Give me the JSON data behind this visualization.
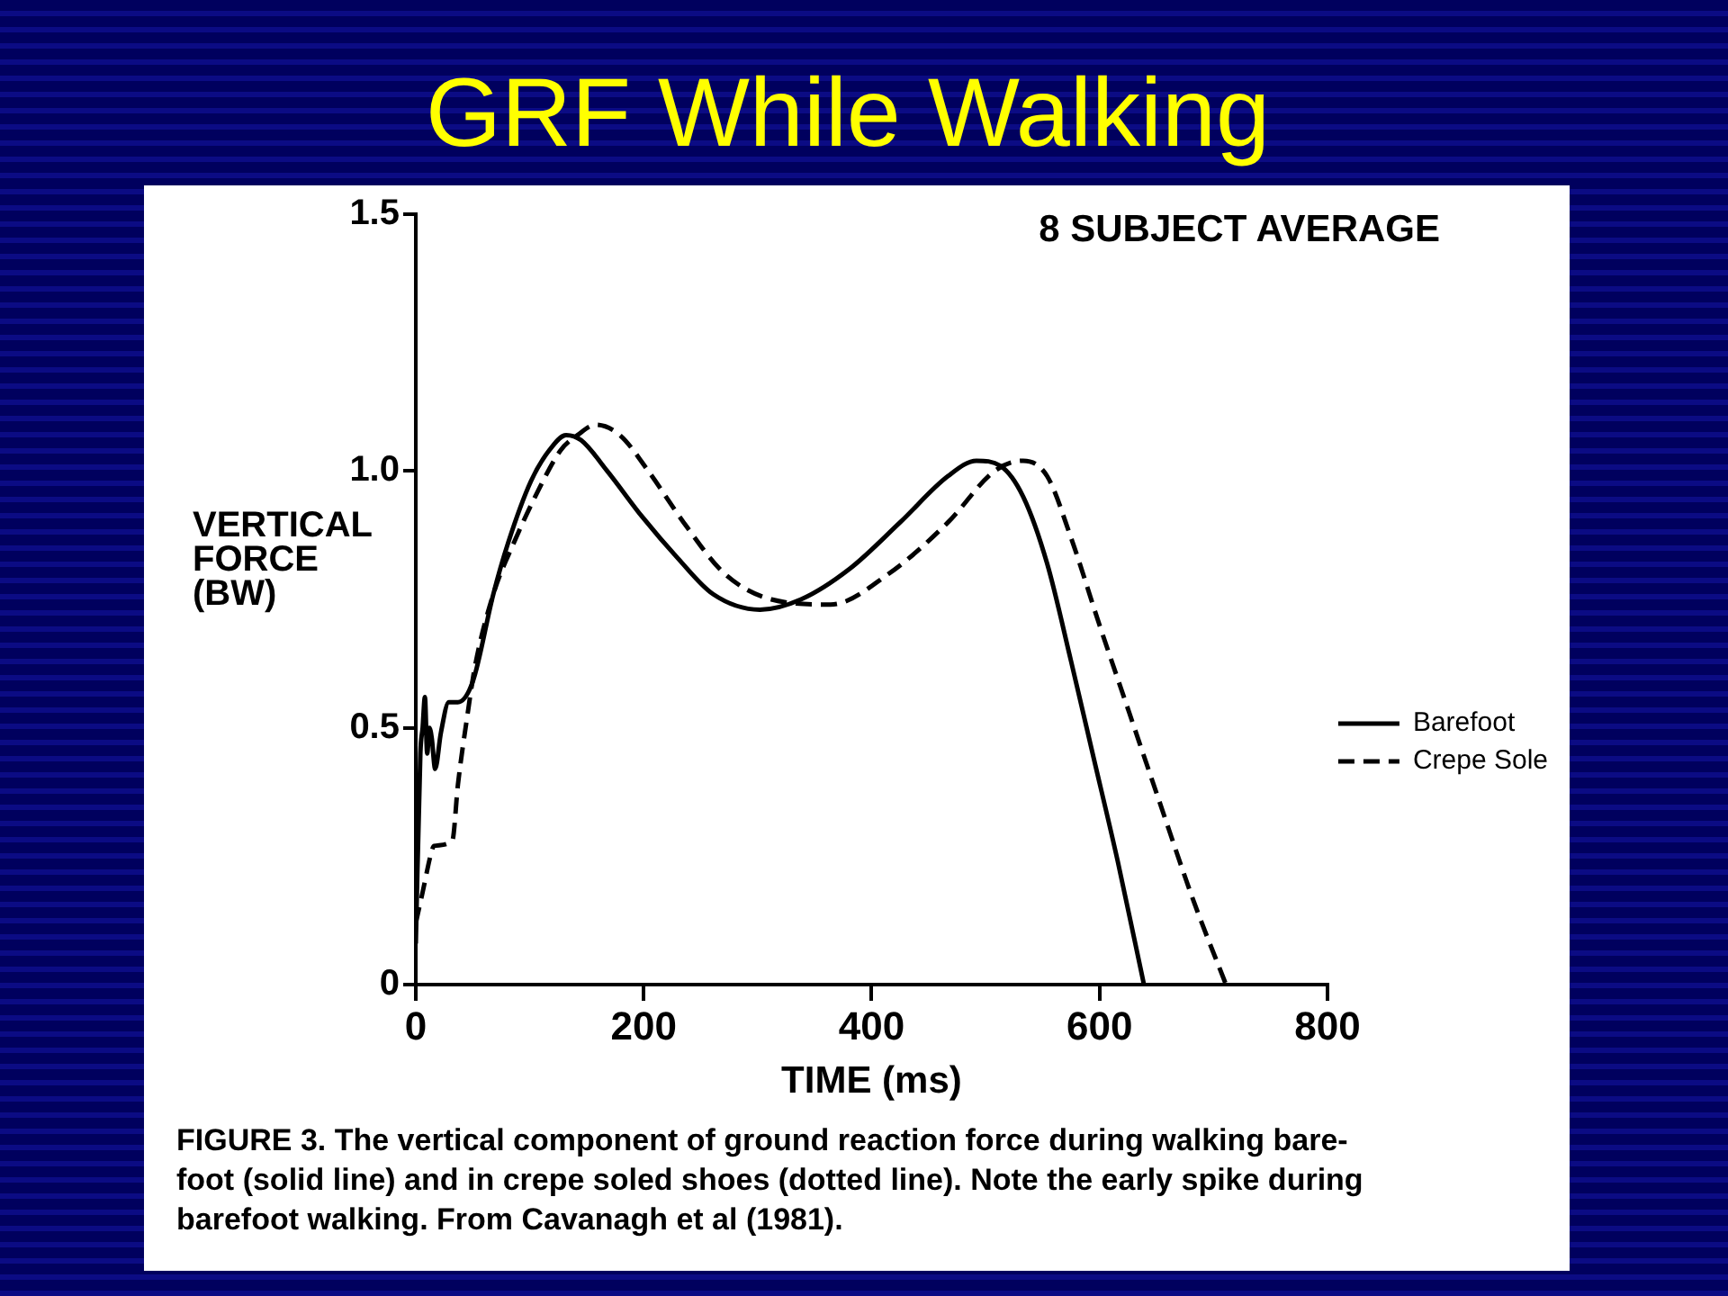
{
  "chart_data": {
    "type": "line",
    "title": "GRF While Walking",
    "subtitle": "8 SUBJECT AVERAGE",
    "xlabel": "TIME (ms)",
    "ylabel": "VERTICAL FORCE (BW)",
    "xlim": [
      0,
      800
    ],
    "ylim": [
      0,
      1.5
    ],
    "xticks": [
      0,
      200,
      400,
      600,
      800
    ],
    "yticks": [
      0,
      0.5,
      {
        "value": 1,
        "label": "1.0"
      },
      1.5
    ],
    "legend": "right",
    "series": [
      {
        "name": "Barefoot",
        "color": "#000000",
        "line_style": "solid",
        "x": [
          0,
          4,
          6,
          8,
          10,
          12,
          14,
          17,
          22,
          29,
          37,
          50,
          68,
          81,
          101,
          117,
          132,
          145,
          168,
          199,
          230,
          261,
          302,
          338,
          381,
          425,
          467,
          492,
          513,
          533,
          554,
          575,
          595,
          616,
          639
        ],
        "values": [
          0.08,
          0.45,
          0.5,
          0.56,
          0.45,
          0.5,
          0.48,
          0.42,
          0.49,
          0.55,
          0.55,
          0.59,
          0.76,
          0.86,
          0.98,
          1.04,
          1.07,
          1.06,
          1.0,
          0.91,
          0.83,
          0.76,
          0.73,
          0.75,
          0.81,
          0.9,
          0.99,
          1.02,
          1.01,
          0.95,
          0.82,
          0.63,
          0.44,
          0.24,
          0
        ]
      },
      {
        "name": "Crepe Sole",
        "color": "#000000",
        "line_style": "dashed",
        "x": [
          0,
          6,
          14,
          16,
          32,
          37,
          45,
          52,
          68,
          86,
          107,
          127,
          142,
          158,
          179,
          204,
          235,
          271,
          312,
          364,
          415,
          467,
          508,
          533,
          554,
          575,
          600,
          626,
          652,
          683,
          711
        ],
        "values": [
          0.12,
          0.18,
          0.26,
          0.27,
          0.28,
          0.39,
          0.52,
          0.62,
          0.76,
          0.86,
          0.96,
          1.04,
          1.07,
          1.09,
          1.07,
          1.0,
          0.9,
          0.8,
          0.75,
          0.74,
          0.8,
          0.9,
          1.0,
          1.02,
          0.99,
          0.87,
          0.7,
          0.53,
          0.36,
          0.16,
          0
        ]
      }
    ],
    "annotations": [
      "FIGURE 3.  The vertical component of ground reaction force during walking bare-\nfoot (solid line) and in crepe soled shoes (dotted line). Note the early spike during\nbarefoot walking. From Cavanagh et al (1981)."
    ]
  }
}
